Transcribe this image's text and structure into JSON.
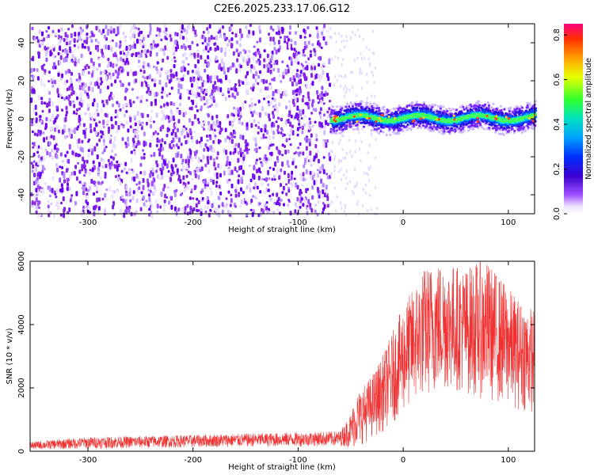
{
  "title": "C2E6.2025.233.17.06.G12",
  "chart_data": [
    {
      "type": "heatmap",
      "xlabel": "Height of straight line (km)",
      "ylabel": "Frequency (Hz)",
      "xlim": [
        -355,
        125
      ],
      "ylim": [
        -50,
        50
      ],
      "xticks": [
        -300,
        -200,
        -100,
        0,
        100
      ],
      "yticks": [
        -40,
        -20,
        0,
        20,
        40
      ],
      "colorbar": {
        "label": "Normalized spectral amplitude",
        "range": [
          0,
          0.85
        ],
        "ticks": [
          0.0,
          0.2,
          0.4,
          0.6,
          0.8
        ]
      },
      "regions": [
        {
          "x": [
            -355,
            -70
          ],
          "frequency_band": [
            -50,
            50
          ],
          "amplitude": [
            0.0,
            0.15
          ]
        },
        {
          "x": [
            -70,
            125
          ],
          "frequency_band": [
            -6,
            9
          ],
          "peak_frequency": 1,
          "amplitude": [
            0.05,
            0.85
          ]
        }
      ]
    },
    {
      "type": "line",
      "xlabel": "Height of straight line (km)",
      "ylabel": "SNR (10 * v/v)",
      "xlim": [
        -355,
        125
      ],
      "ylim": [
        0,
        6000
      ],
      "xticks": [
        -300,
        -200,
        -100,
        0,
        100
      ],
      "yticks": [
        0,
        2000,
        4000,
        6000
      ],
      "color": "#f03232",
      "envelope": {
        "x": [
          -355,
          -300,
          -250,
          -200,
          -150,
          -100,
          -60,
          -50,
          -45,
          -40,
          -30,
          -20,
          -10,
          0,
          10,
          20,
          30,
          40,
          50,
          60,
          70,
          80,
          90,
          100,
          110,
          125
        ],
        "y_min": [
          50,
          80,
          100,
          120,
          140,
          150,
          160,
          100,
          100,
          200,
          400,
          600,
          900,
          1200,
          1500,
          1700,
          1800,
          1900,
          1900,
          1800,
          1700,
          1600,
          1500,
          1400,
          1300,
          1200
        ],
        "y_max": [
          300,
          450,
          480,
          520,
          560,
          600,
          640,
          1200,
          1800,
          2000,
          2400,
          3000,
          3800,
          4600,
          5200,
          5800,
          6000,
          6000,
          5900,
          5800,
          6000,
          6000,
          5600,
          5200,
          4800,
          4500
        ]
      }
    }
  ]
}
